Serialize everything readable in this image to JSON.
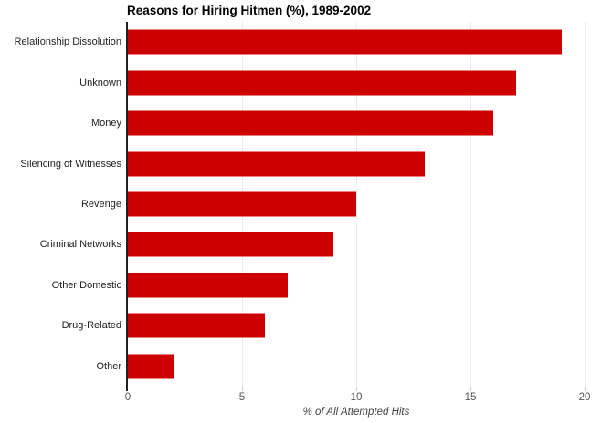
{
  "chart_data": {
    "type": "bar",
    "orientation": "horizontal",
    "title": "Reasons for Hiring Hitmen (%), 1989-2002",
    "categories": [
      "Relationship Dissolution",
      "Unknown",
      "Money",
      "Silencing of Witnesses",
      "Revenge",
      "Criminal Networks",
      "Other Domestic",
      "Drug-Related",
      "Other"
    ],
    "values": [
      19,
      17,
      16,
      13,
      10,
      9,
      7,
      6,
      2
    ],
    "xlabel": "% of All Attempted Hits",
    "ylabel": "",
    "xlim": [
      0,
      20
    ],
    "x_ticks": [
      0,
      5,
      10,
      15,
      20
    ],
    "grid": true,
    "legend": false
  },
  "colors": {
    "bar": "#cc0000",
    "axis_line": "#222222",
    "gridline": "#ececec",
    "tick_mark": "#cccccc",
    "tick_label": "#555555",
    "category_label": "#222222",
    "title": "#000000",
    "background": "#ffffff"
  }
}
